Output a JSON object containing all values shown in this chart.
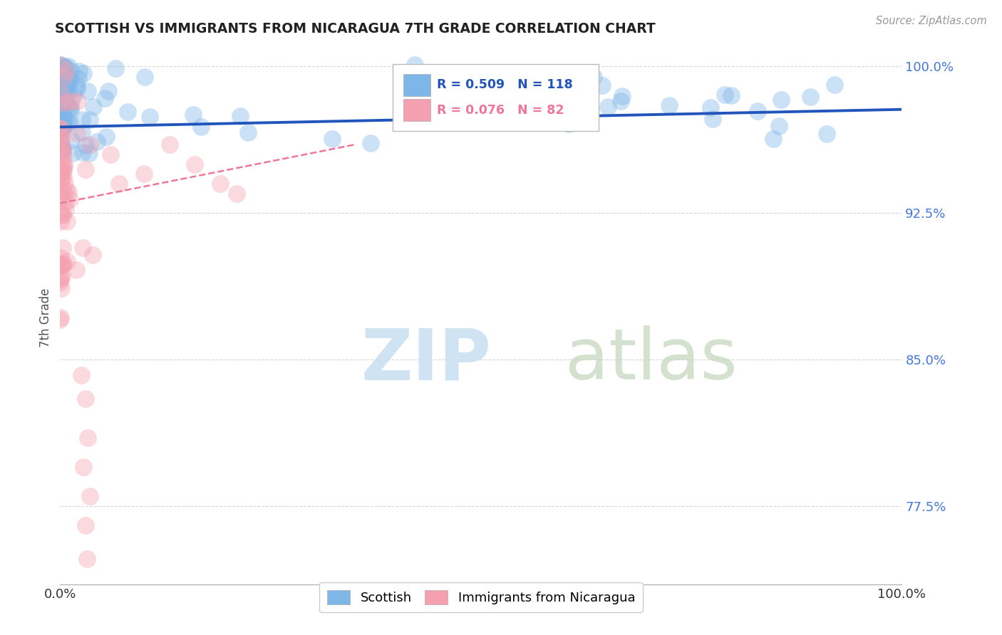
{
  "title": "SCOTTISH VS IMMIGRANTS FROM NICARAGUA 7TH GRADE CORRELATION CHART",
  "source": "Source: ZipAtlas.com",
  "xlabel": "",
  "ylabel": "7th Grade",
  "xlim": [
    0.0,
    1.0
  ],
  "ylim": [
    0.735,
    1.008
  ],
  "yticks": [
    0.775,
    0.85,
    0.925,
    1.0
  ],
  "ytick_labels": [
    "77.5%",
    "85.0%",
    "92.5%",
    "100.0%"
  ],
  "xtick_labels": [
    "0.0%",
    "100.0%"
  ],
  "xticks": [
    0.0,
    1.0
  ],
  "blue_R": 0.509,
  "blue_N": 118,
  "pink_R": 0.076,
  "pink_N": 82,
  "blue_color": "#7EB6E8",
  "pink_color": "#F4A0B0",
  "blue_line_color": "#2255BB",
  "pink_line_color": "#EE7799",
  "grid_color": "#CCCCCC",
  "title_color": "#222222",
  "axis_label_color": "#555555",
  "right_tick_color": "#4477DD",
  "legend_label_blue": "Scottish",
  "legend_label_pink": "Immigrants from Nicaragua",
  "blue_trend_x": [
    0.0,
    1.0
  ],
  "blue_trend_y": [
    0.969,
    0.978
  ],
  "pink_trend_x": [
    0.0,
    0.35
  ],
  "pink_trend_y": [
    0.93,
    0.96
  ]
}
